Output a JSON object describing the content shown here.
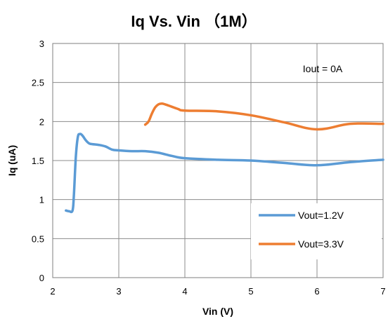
{
  "chart_data": {
    "type": "line",
    "title": "Iq Vs. Vin （1M）",
    "xlabel": "Vin (V)",
    "ylabel": "Iq (uA)",
    "xlim": [
      2,
      7
    ],
    "ylim": [
      0,
      3
    ],
    "xticks": [
      2,
      3,
      4,
      5,
      6,
      7
    ],
    "xtick_labels": [
      "2",
      "3",
      "4",
      "5",
      "6",
      "7"
    ],
    "yticks": [
      0,
      0.5,
      1,
      1.5,
      2,
      2.5,
      3
    ],
    "ytick_labels": [
      "0",
      "0.5",
      "1",
      "1.5",
      "2",
      "2.5",
      "3"
    ],
    "grid": true,
    "legend_position": "bottom-right",
    "annotation": "Iout = 0A",
    "series": [
      {
        "name": "Vout=1.2V",
        "color": "#5b9bd5",
        "x": [
          2.2,
          2.25,
          2.3,
          2.32,
          2.35,
          2.38,
          2.41,
          2.45,
          2.5,
          2.55,
          2.6,
          2.7,
          2.8,
          2.9,
          3.0,
          3.2,
          3.4,
          3.6,
          3.8,
          4.0,
          4.5,
          5.0,
          5.5,
          6.0,
          6.5,
          7.0
        ],
        "y": [
          0.86,
          0.85,
          0.86,
          1.05,
          1.55,
          1.8,
          1.84,
          1.82,
          1.76,
          1.72,
          1.71,
          1.7,
          1.68,
          1.64,
          1.63,
          1.62,
          1.62,
          1.6,
          1.56,
          1.53,
          1.51,
          1.5,
          1.47,
          1.44,
          1.48,
          1.51
        ]
      },
      {
        "name": "Vout=3.3V",
        "color": "#ed7d31",
        "x": [
          3.4,
          3.45,
          3.5,
          3.55,
          3.6,
          3.65,
          3.7,
          3.8,
          3.9,
          4.0,
          4.5,
          5.0,
          5.5,
          6.0,
          6.5,
          7.0
        ],
        "y": [
          1.96,
          2.0,
          2.1,
          2.18,
          2.22,
          2.23,
          2.22,
          2.19,
          2.16,
          2.14,
          2.13,
          2.08,
          1.99,
          1.9,
          1.97,
          1.97
        ]
      }
    ]
  }
}
